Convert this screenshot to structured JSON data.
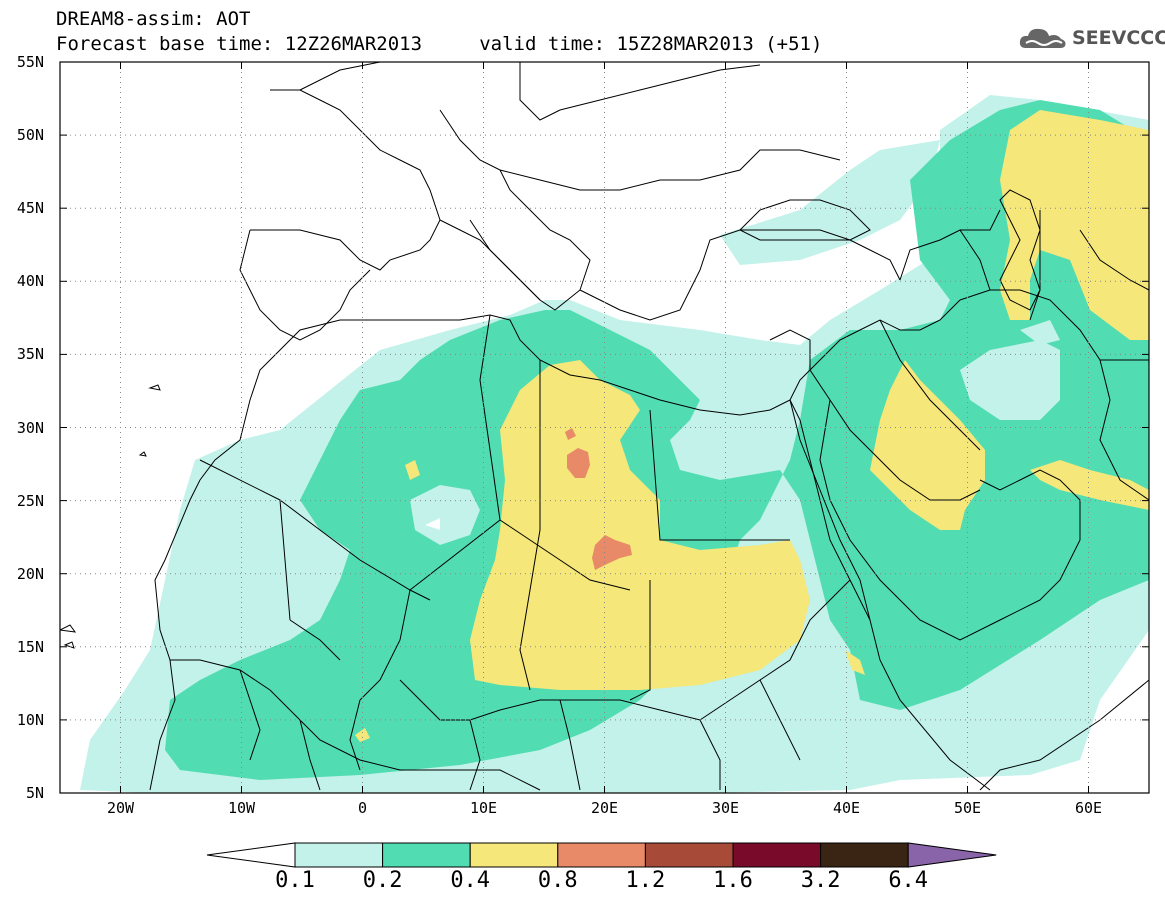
{
  "header": {
    "title_line1": "DREAM8-assim: AOT",
    "title_line2": "Forecast base time: 12Z26MAR2013     valid time: 15Z28MAR2013 (+51)",
    "logo_text": "SEEVCCC"
  },
  "map": {
    "lat_labels": [
      "55N",
      "50N",
      "45N",
      "40N",
      "35N",
      "30N",
      "25N",
      "20N",
      "15N",
      "10N",
      "5N"
    ],
    "lon_labels": [
      "20W",
      "10W",
      "0",
      "10E",
      "20E",
      "30E",
      "40E",
      "50E",
      "60E"
    ],
    "region": "North Africa, Middle East and Europe",
    "colors": {
      "0.1-0.2": "#c2f2ea",
      "0.2-0.4": "#52dcb2",
      "0.4-0.8": "#f5e77a",
      "0.8-1.2": "#e88a68",
      "1.2-1.6": "#a84a38",
      "1.6-3.2": "#7a0a2a",
      "3.2-6.4": "#3a2414",
      "over-6.4": "#8a64a8"
    }
  },
  "colorbar": {
    "labels": [
      "0.1",
      "0.2",
      "0.4",
      "0.8",
      "1.2",
      "1.6",
      "3.2",
      "6.4"
    ],
    "colors": [
      "#c2f2ea",
      "#52dcb2",
      "#f5e77a",
      "#e88a68",
      "#a84a38",
      "#7a0a2a",
      "#3a2414"
    ],
    "under_color": "#ffffff",
    "over_color": "#8a64a8"
  }
}
